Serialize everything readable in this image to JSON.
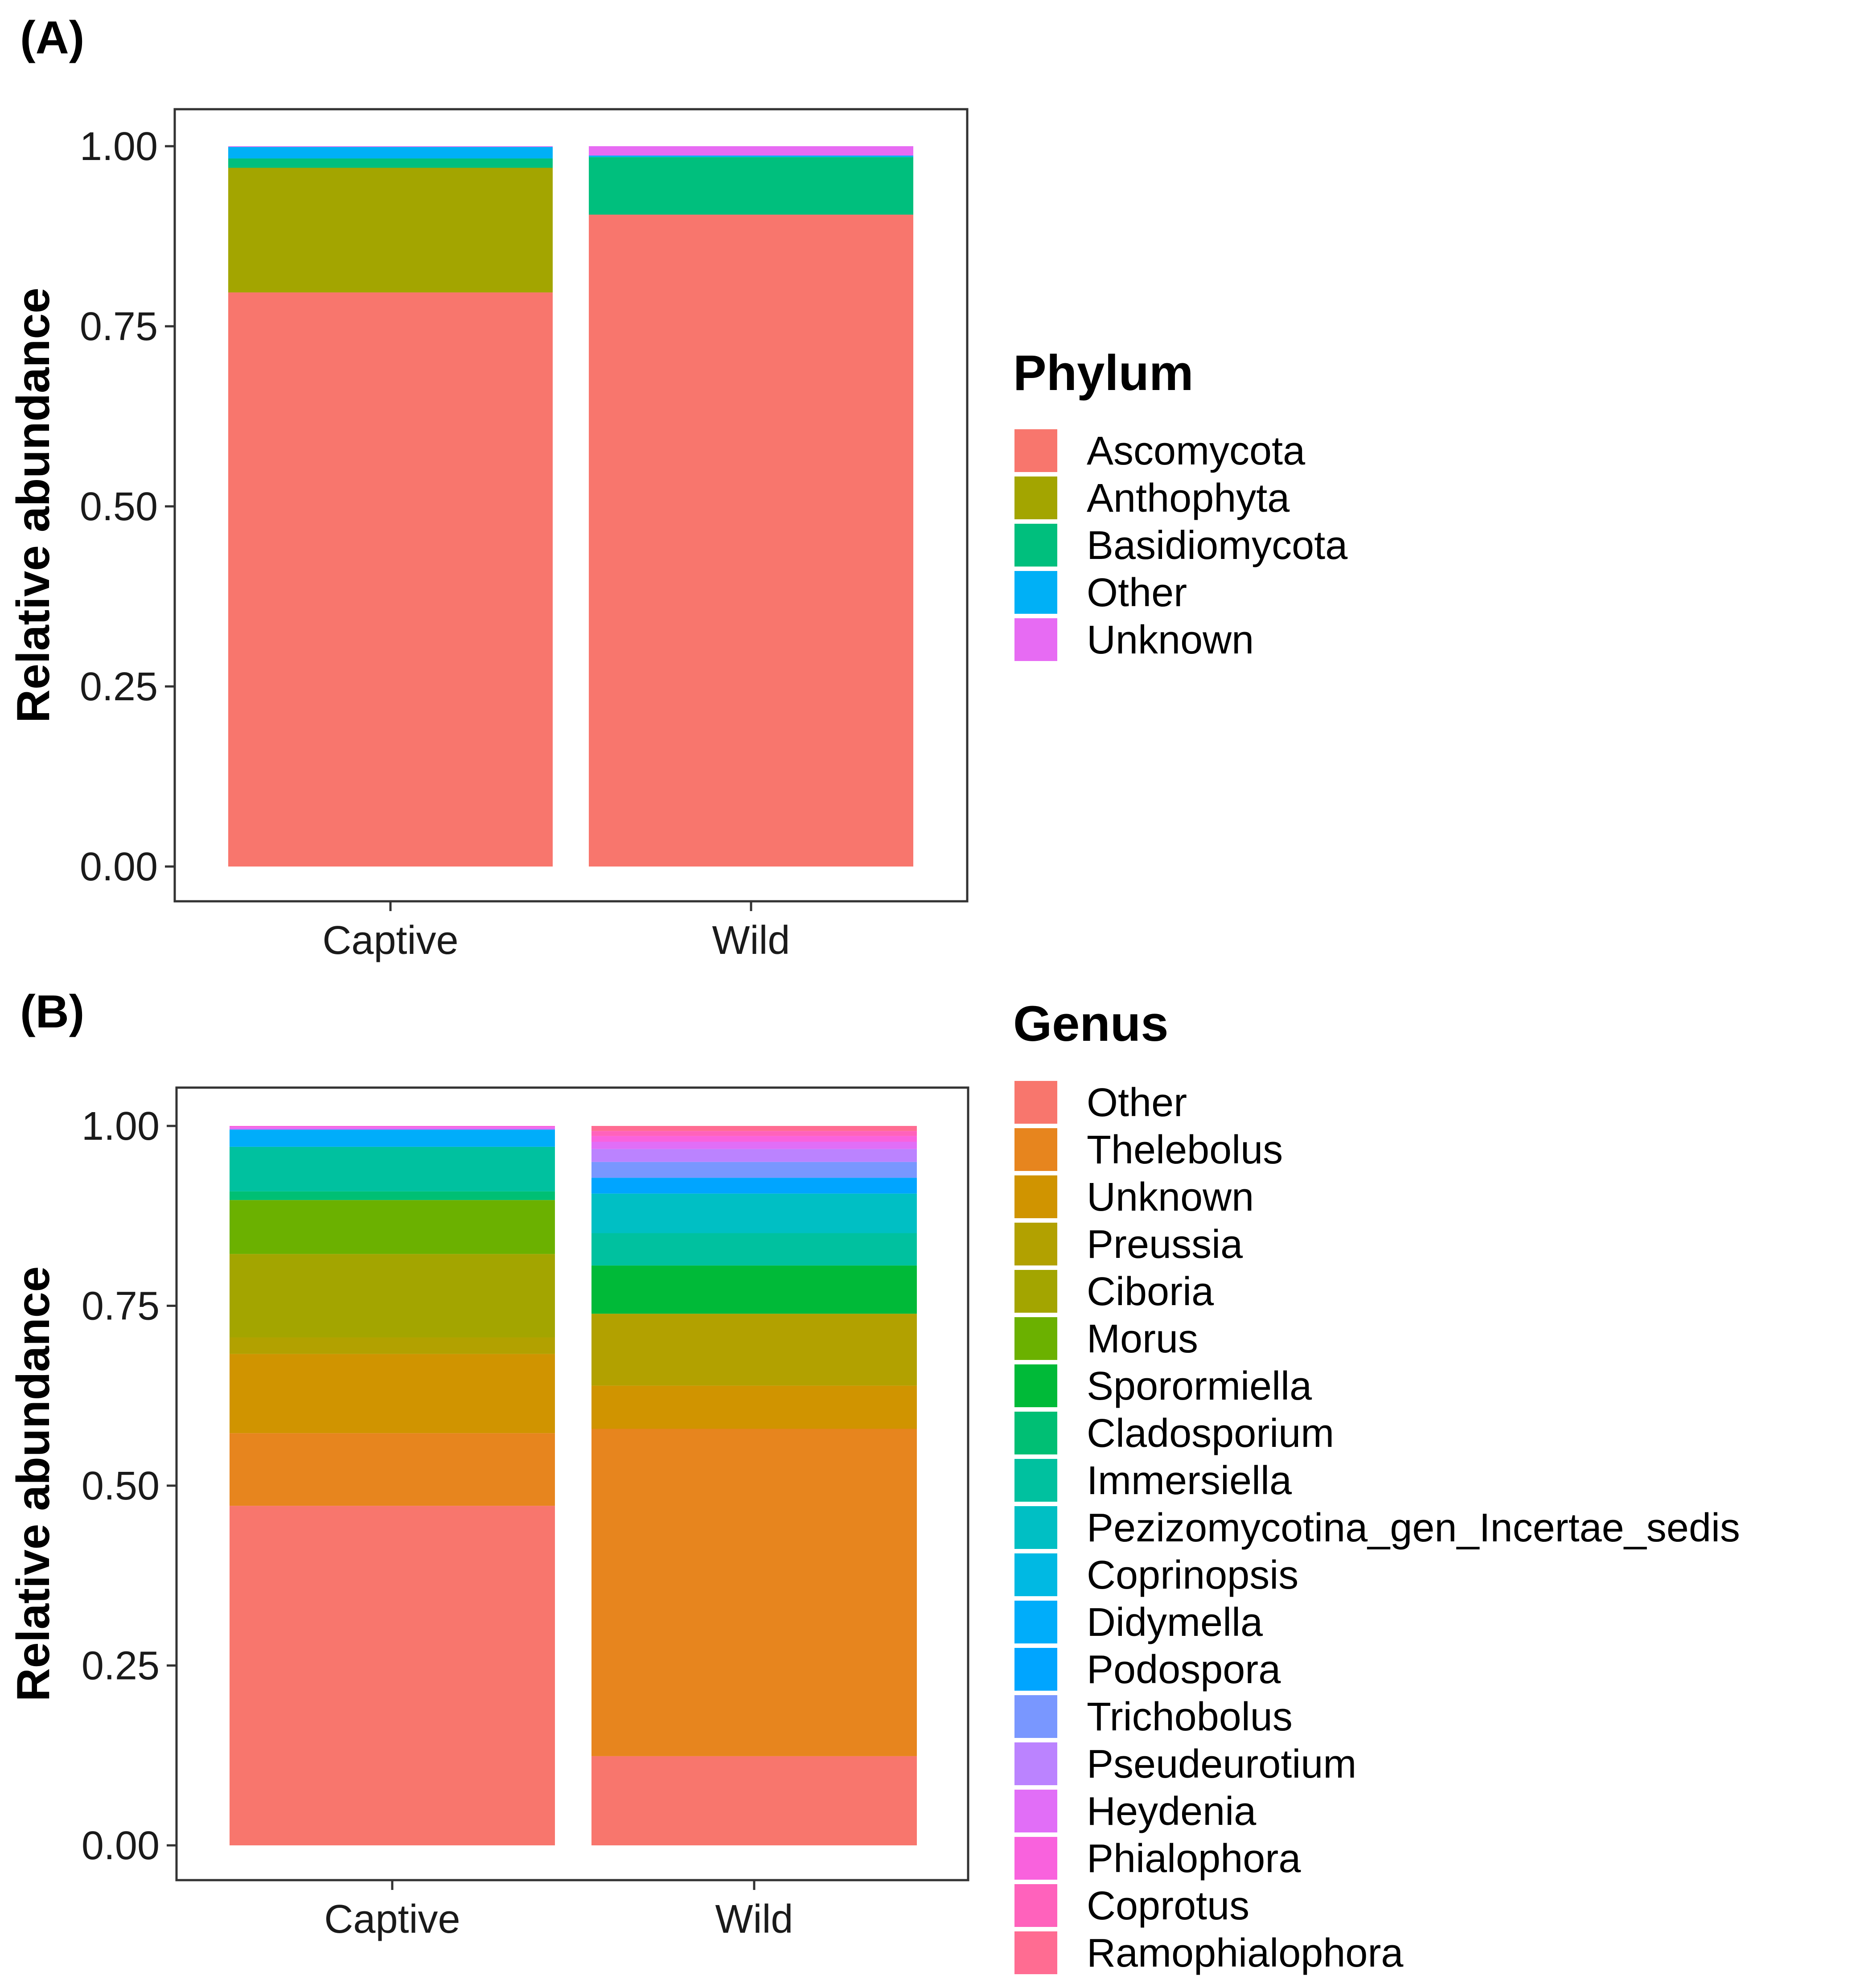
{
  "chart_data": [
    {
      "type": "bar",
      "stacked": true,
      "panel_label": "(A)",
      "ylabel": "Relative abundance",
      "xlabel": "",
      "ylim": [
        0,
        1
      ],
      "y_ticks": [
        "0.00",
        "0.25",
        "0.50",
        "0.75",
        "1.00"
      ],
      "y_tick_values": [
        0,
        0.25,
        0.5,
        0.75,
        1
      ],
      "categories": [
        "Captive",
        "Wild"
      ],
      "legend_title": "Phylum",
      "legend_position": "right",
      "series": [
        {
          "name": "Ascomycota",
          "color": "#F8766D",
          "values": [
            0.797,
            0.905
          ]
        },
        {
          "name": "Anthophyta",
          "color": "#A3A500",
          "values": [
            0.173,
            0.0
          ]
        },
        {
          "name": "Basidiomycota",
          "color": "#00BF7D",
          "values": [
            0.013,
            0.08
          ]
        },
        {
          "name": "Other",
          "color": "#00B0F6",
          "values": [
            0.016,
            0.002
          ]
        },
        {
          "name": "Unknown",
          "color": "#E76BF3",
          "values": [
            0.001,
            0.013
          ]
        }
      ]
    },
    {
      "type": "bar",
      "stacked": true,
      "panel_label": "(B)",
      "ylabel": "Relative abundance",
      "xlabel": "",
      "ylim": [
        0,
        1
      ],
      "y_ticks": [
        "0.00",
        "0.25",
        "0.50",
        "0.75",
        "1.00"
      ],
      "y_tick_values": [
        0,
        0.25,
        0.5,
        0.75,
        1
      ],
      "categories": [
        "Captive",
        "Wild"
      ],
      "legend_title": "Genus",
      "legend_position": "right",
      "series": [
        {
          "name": "Other",
          "color": "#F8766D",
          "values": [
            0.472,
            0.124
          ]
        },
        {
          "name": "Thelebolus",
          "color": "#E7851E",
          "values": [
            0.101,
            0.455
          ]
        },
        {
          "name": "Unknown",
          "color": "#D09400",
          "values": [
            0.11,
            0.06
          ]
        },
        {
          "name": "Preussia",
          "color": "#B2A100",
          "values": [
            0.023,
            0.1
          ]
        },
        {
          "name": "Ciboria",
          "color": "#A3A500",
          "values": [
            0.116,
            0.0
          ]
        },
        {
          "name": "Morus",
          "color": "#6BB100",
          "values": [
            0.075,
            0.0
          ]
        },
        {
          "name": "Sporormiella",
          "color": "#00BA38",
          "values": [
            0.0,
            0.067
          ]
        },
        {
          "name": "Cladosporium",
          "color": "#00BF74",
          "values": [
            0.012,
            0.0
          ]
        },
        {
          "name": "Immersiella",
          "color": "#00C19F",
          "values": [
            0.062,
            0.045
          ]
        },
        {
          "name": "Pezizomycotina_gen_Incertae_sedis",
          "color": "#00BFC4",
          "values": [
            0.0,
            0.055
          ]
        },
        {
          "name": "Coprinopsis",
          "color": "#00B9E3",
          "values": [
            0.0,
            0.0
          ]
        },
        {
          "name": "Didymella",
          "color": "#00ADFA",
          "values": [
            0.024,
            0.0
          ]
        },
        {
          "name": "Podospora",
          "color": "#00A5FF",
          "values": [
            0.0,
            0.022
          ]
        },
        {
          "name": "Trichobolus",
          "color": "#7997FF",
          "values": [
            0.0,
            0.022
          ]
        },
        {
          "name": "Pseudeurotium",
          "color": "#BB83FF",
          "values": [
            0.0,
            0.018
          ]
        },
        {
          "name": "Heydenia",
          "color": "#E16EF7",
          "values": [
            0.003,
            0.01
          ]
        },
        {
          "name": "Phialophora",
          "color": "#F962DD",
          "values": [
            0.002,
            0.008
          ]
        },
        {
          "name": "Coprotus",
          "color": "#FF62BC",
          "values": [
            0.0,
            0.007
          ]
        },
        {
          "name": "Ramophialophora",
          "color": "#FF6C92",
          "values": [
            0.0,
            0.007
          ]
        }
      ]
    }
  ]
}
